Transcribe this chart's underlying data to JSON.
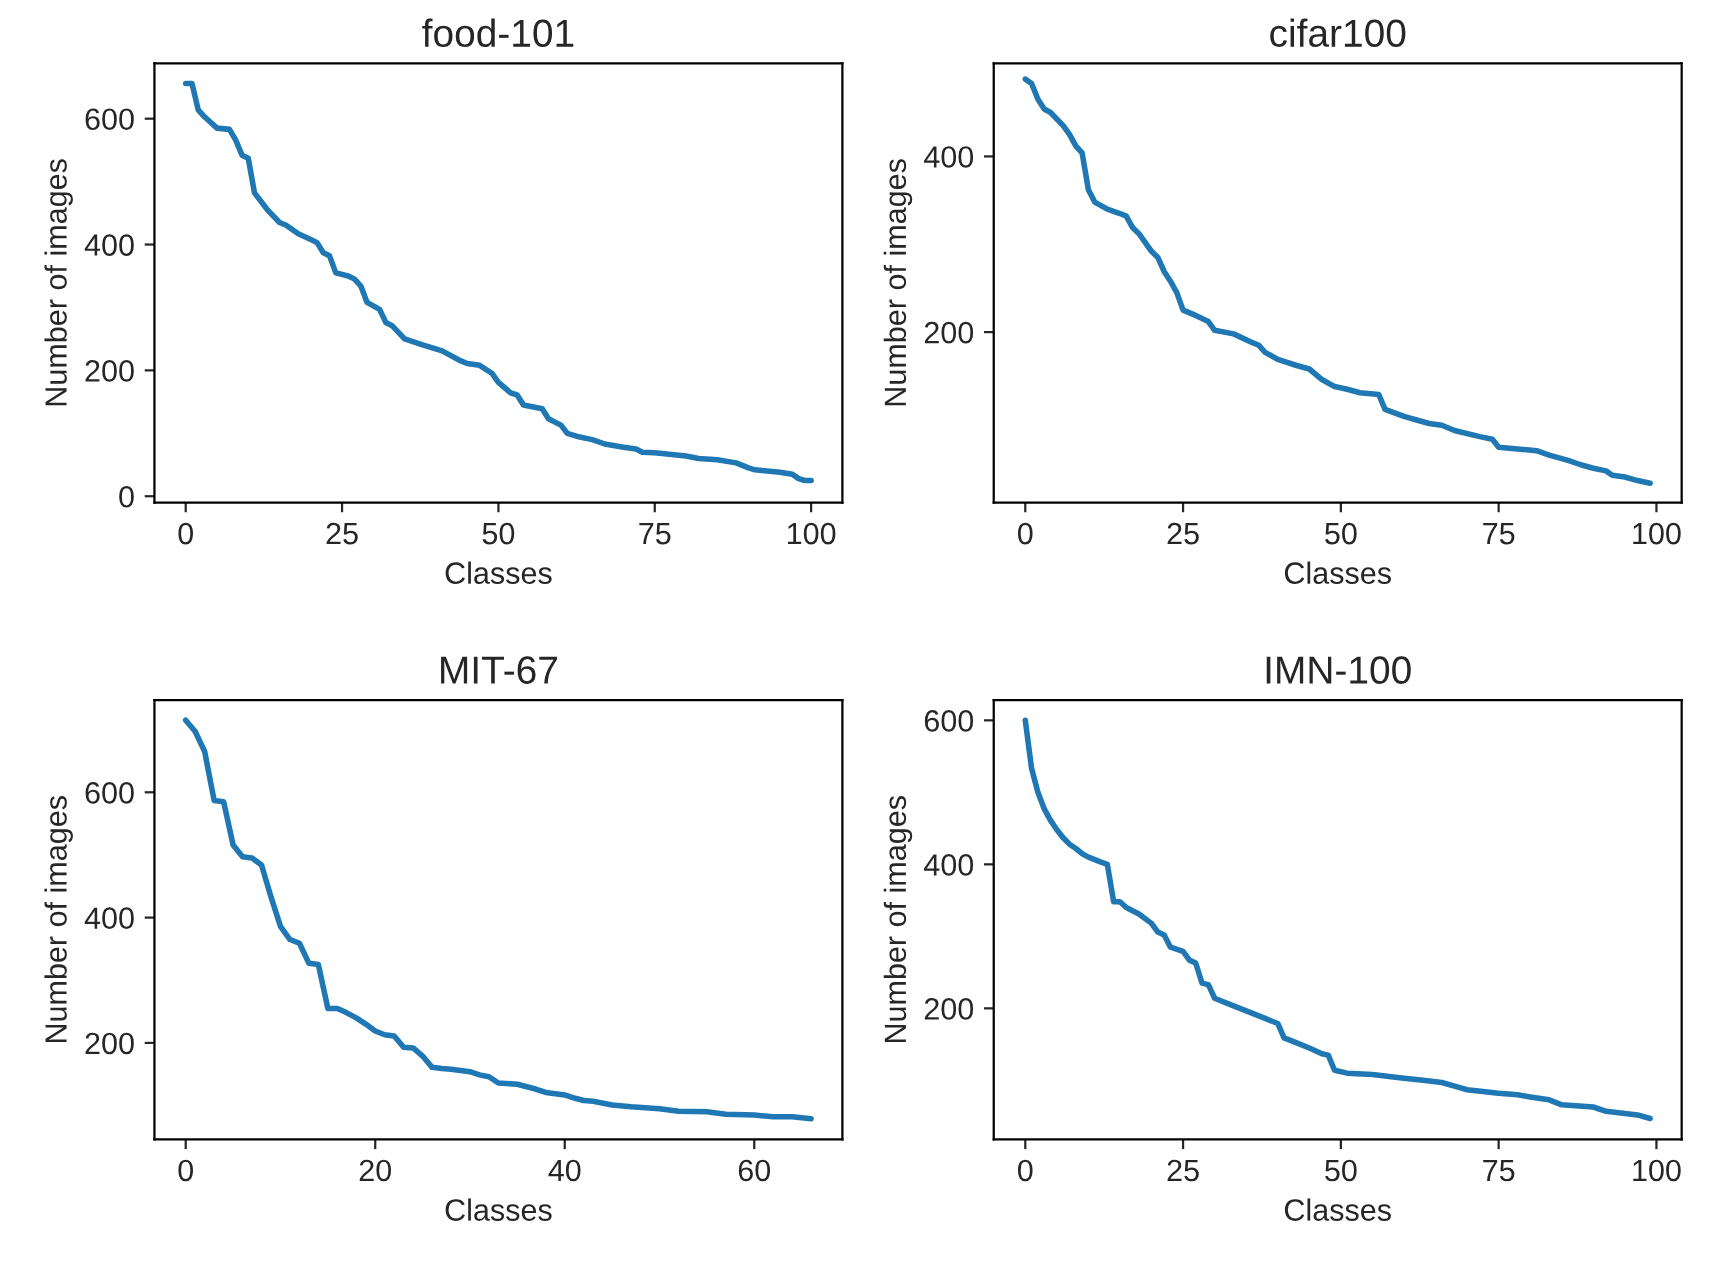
{
  "chart_data": [
    {
      "type": "line",
      "title": "food-101",
      "xlabel": "Classes",
      "ylabel": "Number of images",
      "xlim": [
        -5,
        105
      ],
      "xticks": [
        0,
        25,
        50,
        75,
        100
      ],
      "ylim": [
        -10,
        688
      ],
      "yticks": [
        0,
        200,
        400,
        600
      ],
      "series": [
        {
          "color": "#1f77b4",
          "x": [
            0,
            1,
            2,
            3,
            5,
            7,
            8,
            9,
            10,
            11,
            13,
            15,
            16,
            18,
            20,
            21,
            22,
            23,
            24,
            26,
            27,
            28,
            29,
            31,
            32,
            33,
            35,
            38,
            41,
            44,
            45,
            47,
            49,
            50,
            52,
            53,
            54,
            57,
            58,
            60,
            61,
            63,
            65,
            67,
            70,
            72,
            73,
            75,
            80,
            82,
            85,
            88,
            90,
            91,
            95,
            97,
            98,
            99,
            100
          ],
          "values": [
            656,
            656,
            614,
            603,
            585,
            583,
            566,
            542,
            537,
            482,
            456,
            435,
            431,
            417,
            408,
            403,
            387,
            382,
            355,
            350,
            345,
            334,
            308,
            297,
            276,
            271,
            250,
            240,
            231,
            215,
            211,
            208,
            195,
            181,
            164,
            161,
            145,
            139,
            123,
            113,
            100,
            94,
            90,
            83,
            78,
            75,
            70,
            69,
            64,
            60,
            58,
            53,
            45,
            42,
            38,
            35,
            28,
            25,
            25
          ]
        }
      ]
    },
    {
      "type": "line",
      "title": "cifar100",
      "xlabel": "Classes",
      "ylabel": "Number of images",
      "xlim": [
        -5,
        104
      ],
      "xticks": [
        0,
        25,
        50,
        75,
        100
      ],
      "ylim": [
        6,
        506
      ],
      "yticks": [
        200,
        400
      ],
      "series": [
        {
          "color": "#1f77b4",
          "x": [
            0,
            1,
            2,
            3,
            4,
            6,
            7,
            8,
            9,
            10,
            11,
            13,
            15,
            16,
            17,
            18,
            20,
            21,
            22,
            23,
            24,
            25,
            27,
            29,
            30,
            33,
            36,
            37,
            38,
            40,
            43,
            45,
            47,
            49,
            51,
            53,
            56,
            57,
            60,
            62,
            64,
            66,
            68,
            72,
            74,
            75,
            78,
            81,
            83,
            86,
            88,
            90,
            92,
            93,
            95,
            97,
            99
          ],
          "values": [
            488,
            483,
            465,
            454,
            450,
            435,
            425,
            412,
            404,
            362,
            348,
            340,
            335,
            332,
            319,
            312,
            292,
            285,
            269,
            258,
            245,
            225,
            219,
            212,
            202,
            198,
            188,
            185,
            177,
            169,
            162,
            158,
            146,
            138,
            135,
            131,
            129,
            112,
            104,
            100,
            96,
            94,
            88,
            81,
            78,
            69,
            67,
            65,
            60,
            54,
            49,
            45,
            42,
            37,
            35,
            31,
            28
          ]
        }
      ]
    },
    {
      "type": "line",
      "title": "MIT-67",
      "xlabel": "Classes",
      "ylabel": "Number of images",
      "xlim": [
        -3.3,
        69.3
      ],
      "xticks": [
        0,
        20,
        40,
        60
      ],
      "ylim": [
        46,
        747
      ],
      "yticks": [
        200,
        400,
        600
      ],
      "series": [
        {
          "color": "#1f77b4",
          "x": [
            0,
            1,
            2,
            3,
            4,
            5,
            6,
            7,
            8,
            9,
            10,
            11,
            12,
            13,
            14,
            15,
            16,
            17,
            18,
            19,
            20,
            21,
            22,
            23,
            24,
            25,
            26,
            27,
            28,
            30,
            31,
            32,
            33,
            35,
            36,
            37,
            38,
            40,
            41,
            42,
            43,
            45,
            47,
            50,
            52,
            55,
            57,
            60,
            62,
            64,
            66
          ],
          "values": [
            715,
            697,
            665,
            587,
            585,
            516,
            497,
            495,
            484,
            433,
            386,
            365,
            359,
            327,
            325,
            255,
            255,
            248,
            240,
            230,
            219,
            213,
            211,
            193,
            192,
            179,
            161,
            159,
            158,
            154,
            149,
            146,
            136,
            134,
            130,
            126,
            121,
            117,
            112,
            108,
            107,
            101,
            98,
            95,
            91,
            90,
            86,
            85,
            82,
            82,
            79
          ]
        }
      ]
    },
    {
      "type": "line",
      "title": "IMN-100",
      "xlabel": "Classes",
      "ylabel": "Number of images",
      "xlim": [
        -5,
        104
      ],
      "xticks": [
        0,
        25,
        50,
        75,
        100
      ],
      "ylim": [
        18,
        628
      ],
      "yticks": [
        200,
        400,
        600
      ],
      "series": [
        {
          "color": "#1f77b4",
          "x": [
            0,
            1,
            2,
            3,
            4,
            5,
            6,
            7,
            8,
            9,
            10,
            12,
            13,
            14,
            15,
            16,
            18,
            20,
            21,
            22,
            23,
            25,
            26,
            27,
            28,
            29,
            30,
            32,
            34,
            36,
            38,
            40,
            41,
            43,
            45,
            47,
            48,
            49,
            51,
            55,
            60,
            63,
            66,
            68,
            70,
            75,
            78,
            80,
            83,
            85,
            90,
            92,
            95,
            97,
            99
          ],
          "values": [
            600,
            533,
            500,
            477,
            461,
            448,
            437,
            428,
            422,
            415,
            410,
            403,
            400,
            348,
            348,
            340,
            331,
            318,
            306,
            302,
            285,
            279,
            267,
            263,
            235,
            233,
            214,
            207,
            200,
            193,
            186,
            179,
            159,
            152,
            145,
            137,
            135,
            114,
            110,
            108,
            103,
            100,
            97,
            92,
            87,
            82,
            80,
            77,
            73,
            66,
            63,
            57,
            54,
            52,
            47
          ]
        }
      ]
    }
  ]
}
